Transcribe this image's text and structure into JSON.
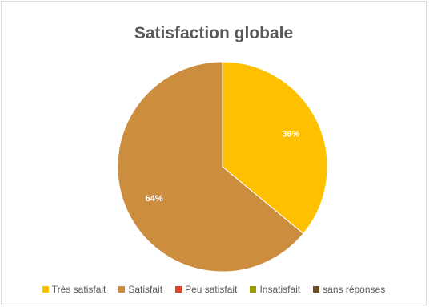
{
  "chart_data": {
    "type": "pie",
    "title": "Satisfaction globale",
    "categories": [
      "Très satisfait",
      "Satisfait",
      "Peu satisfait",
      "Insatisfait",
      "sans réponses"
    ],
    "values": [
      36,
      64,
      0,
      0,
      0
    ],
    "data_labels": [
      "36%",
      "64%",
      "",
      "",
      ""
    ],
    "colors": [
      "#ffc000",
      "#cc8d3e",
      "#e6412a",
      "#a09800",
      "#6b4b22"
    ],
    "legend_position": "bottom",
    "start_angle": "top, clockwise"
  }
}
